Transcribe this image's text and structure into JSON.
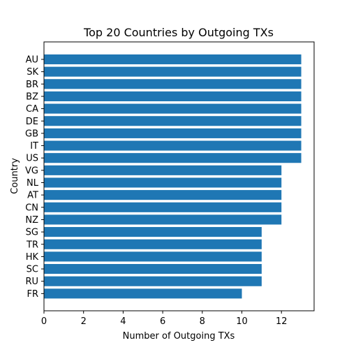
{
  "chart_data": {
    "type": "bar",
    "orientation": "horizontal",
    "title": "Top 20 Countries by Outgoing TXs",
    "xlabel": "Number of Outgoing TXs",
    "ylabel": "Country",
    "categories": [
      "AU",
      "SK",
      "BR",
      "BZ",
      "CA",
      "DE",
      "GB",
      "IT",
      "US",
      "VG",
      "NL",
      "AT",
      "CN",
      "NZ",
      "SG",
      "TR",
      "HK",
      "SC",
      "RU",
      "FR"
    ],
    "values": [
      13,
      13,
      13,
      13,
      13,
      13,
      13,
      13,
      13,
      12,
      12,
      12,
      12,
      12,
      11,
      11,
      11,
      11,
      11,
      10
    ],
    "xlim": [
      0,
      13.65
    ],
    "xticks": [
      "0",
      "2",
      "4",
      "6",
      "8",
      "10",
      "12"
    ],
    "grid": false,
    "colors": {
      "bar": "#1f77b4",
      "axis": "#000000",
      "background": "#ffffff"
    }
  }
}
